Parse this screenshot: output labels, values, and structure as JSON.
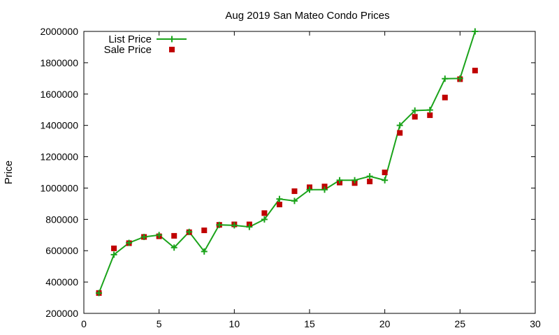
{
  "chart_data": {
    "type": "line",
    "title": "Aug 2019 San Mateo Condo Prices",
    "xlabel": "",
    "ylabel": "Price",
    "xlim": [
      0,
      30
    ],
    "ylim": [
      200000,
      2000000
    ],
    "x_ticks": [
      0,
      5,
      10,
      15,
      20,
      25,
      30
    ],
    "y_ticks": [
      200000,
      400000,
      600000,
      800000,
      1000000,
      1200000,
      1400000,
      1600000,
      1800000,
      2000000
    ],
    "x_tick_labels": [
      "0",
      "5",
      "10",
      "15",
      "20",
      "25",
      "30"
    ],
    "y_tick_labels": [
      "200000",
      "400000",
      "600000",
      "800000",
      "1000000",
      "1200000",
      "1400000",
      "1600000",
      "1800000",
      "2000000"
    ],
    "grid": false,
    "legend_position": "top-left",
    "series": [
      {
        "name": "List Price",
        "style": "line-with-plus-markers",
        "color": "#1aa31a",
        "x": [
          1,
          2,
          3,
          4,
          5,
          6,
          7,
          8,
          9,
          10,
          11,
          12,
          13,
          14,
          15,
          16,
          17,
          18,
          19,
          20,
          21,
          22,
          23,
          24,
          25,
          26
        ],
        "y": [
          330000,
          575000,
          650000,
          688000,
          700000,
          620000,
          720000,
          595000,
          765000,
          762000,
          752000,
          800000,
          930000,
          918000,
          990000,
          990000,
          1050000,
          1050000,
          1075000,
          1050000,
          1400000,
          1495000,
          1498000,
          1698000,
          1700000,
          2000000
        ]
      },
      {
        "name": "Sale Price",
        "style": "square-markers",
        "color": "#c00000",
        "x": [
          1,
          2,
          3,
          4,
          5,
          6,
          7,
          8,
          9,
          10,
          11,
          12,
          13,
          14,
          15,
          16,
          17,
          18,
          19,
          20,
          21,
          22,
          23,
          24,
          25,
          26
        ],
        "y": [
          330000,
          615000,
          648000,
          688000,
          692000,
          695000,
          718000,
          730000,
          765000,
          768000,
          768000,
          840000,
          895000,
          980000,
          1005000,
          1010000,
          1035000,
          1032000,
          1042000,
          1100000,
          1352000,
          1455000,
          1465000,
          1578000,
          1695000,
          1750000
        ]
      }
    ]
  }
}
